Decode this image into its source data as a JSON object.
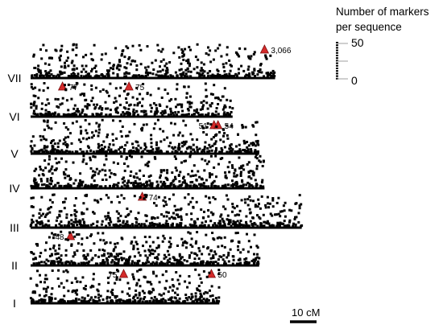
{
  "chart_data": {
    "type": "scatter",
    "title": "",
    "legend": {
      "title_line1": "Number of markers",
      "title_line2": "per sequence",
      "max_label": "50",
      "min_label": "0",
      "range": [
        0,
        50
      ]
    },
    "scale_bar": {
      "label": "10 cM",
      "length_cM": 10
    },
    "colors": {
      "points": "#000000",
      "triangle_fill": "#d42a2a",
      "triangle_stroke": "#7a0d0d"
    },
    "chromosomes": [
      {
        "name": "VII",
        "length_cM": 92,
        "density": 420,
        "seed": 7,
        "highlights": [
          {
            "position_cM": 88,
            "value": "3,066",
            "label": "3,066",
            "side": "above"
          },
          {
            "position_cM": 12,
            "value": "77",
            "label": "77",
            "side": "below"
          },
          {
            "position_cM": 37,
            "value": "75",
            "label": "75",
            "side": "below"
          }
        ]
      },
      {
        "name": "VI",
        "length_cM": 76,
        "density": 360,
        "seed": 6,
        "highlights": [
          {
            "position_cM": 69,
            "value": "51",
            "label": "51",
            "side": "below",
            "label_side": "left"
          },
          {
            "position_cM": 70.5,
            "value": "54",
            "label": "54",
            "side": "below"
          }
        ]
      },
      {
        "name": "V",
        "length_cM": 86,
        "density": 420,
        "seed": 5,
        "highlights": []
      },
      {
        "name": "IV",
        "length_cM": 88,
        "density": 460,
        "seed": 4,
        "highlights": [
          {
            "position_cM": 42,
            "value": "74",
            "label": "74",
            "side": "below"
          }
        ]
      },
      {
        "name": "III",
        "length_cM": 102,
        "density": 520,
        "seed": 3,
        "highlights": [
          {
            "position_cM": 15,
            "value": "48",
            "label": "48",
            "side": "below",
            "label_side": "left"
          }
        ]
      },
      {
        "name": "II",
        "length_cM": 86,
        "density": 460,
        "seed": 2,
        "highlights": [
          {
            "position_cM": 35,
            "value": "75",
            "label": "75",
            "side": "below",
            "label_side": "left"
          },
          {
            "position_cM": 68,
            "value": "50",
            "label": "50",
            "side": "below"
          }
        ]
      },
      {
        "name": "I",
        "length_cM": 71,
        "density": 360,
        "seed": 1,
        "highlights": []
      }
    ]
  }
}
